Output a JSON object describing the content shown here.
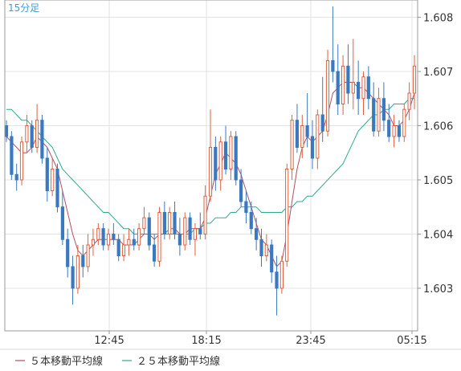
{
  "chart_data": {
    "type": "candlestick",
    "timeframe": "15分足",
    "x_tick_labels": [
      "12:45",
      "18:15",
      "23:45",
      "05:15"
    ],
    "y_tick_labels": [
      "1.603",
      "1.604",
      "1.605",
      "1.606",
      "1.607",
      "1.608"
    ],
    "y_ticks": [
      1.603,
      1.604,
      1.605,
      1.606,
      1.607,
      1.608
    ],
    "ylim": [
      1.6023,
      1.6083
    ],
    "grid": true,
    "legend": [
      {
        "name": "５本移動平均線",
        "color": "#b05060"
      },
      {
        "name": "２５本移動平均線",
        "color": "#2eaa8a"
      }
    ],
    "colors": {
      "up": "#e06040",
      "down": "#3a78c0",
      "ma5": "#b05060",
      "ma25": "#2eaa8a",
      "grid": "#e3e3e3",
      "axis": "#999999"
    },
    "candles": [
      [
        1.606,
        1.6061,
        1.6057,
        1.6058
      ],
      [
        1.6058,
        1.6059,
        1.605,
        1.6051
      ],
      [
        1.6051,
        1.6053,
        1.6048,
        1.605
      ],
      [
        1.605,
        1.6058,
        1.6049,
        1.6057
      ],
      [
        1.6057,
        1.6062,
        1.6055,
        1.606
      ],
      [
        1.606,
        1.6061,
        1.6055,
        1.6056
      ],
      [
        1.6056,
        1.6064,
        1.6055,
        1.6061
      ],
      [
        1.6061,
        1.6062,
        1.6053,
        1.6054
      ],
      [
        1.6054,
        1.6056,
        1.6046,
        1.6048
      ],
      [
        1.6048,
        1.6054,
        1.6047,
        1.6052
      ],
      [
        1.6052,
        1.6053,
        1.6044,
        1.6045
      ],
      [
        1.6045,
        1.6048,
        1.6038,
        1.6039
      ],
      [
        1.6039,
        1.6041,
        1.6032,
        1.6034
      ],
      [
        1.6034,
        1.6036,
        1.6027,
        1.603
      ],
      [
        1.603,
        1.6038,
        1.6029,
        1.6036
      ],
      [
        1.6036,
        1.6038,
        1.6032,
        1.6034
      ],
      [
        1.6034,
        1.604,
        1.6033,
        1.6038
      ],
      [
        1.6038,
        1.6041,
        1.6036,
        1.6039
      ],
      [
        1.6039,
        1.6042,
        1.6038,
        1.6041
      ],
      [
        1.6041,
        1.6042,
        1.6037,
        1.6038
      ],
      [
        1.6038,
        1.6041,
        1.6037,
        1.604
      ],
      [
        1.604,
        1.6042,
        1.6038,
        1.6039
      ],
      [
        1.6039,
        1.604,
        1.6035,
        1.6036
      ],
      [
        1.6036,
        1.604,
        1.6035,
        1.6038
      ],
      [
        1.6038,
        1.6041,
        1.6036,
        1.6039
      ],
      [
        1.6039,
        1.6041,
        1.6037,
        1.6038
      ],
      [
        1.6038,
        1.6042,
        1.6037,
        1.6041
      ],
      [
        1.6041,
        1.6045,
        1.604,
        1.6043
      ],
      [
        1.6043,
        1.6044,
        1.6037,
        1.6038
      ],
      [
        1.6038,
        1.604,
        1.6034,
        1.6035
      ],
      [
        1.6035,
        1.6045,
        1.6034,
        1.6044
      ],
      [
        1.6044,
        1.6046,
        1.6039,
        1.604
      ],
      [
        1.604,
        1.6045,
        1.6039,
        1.6044
      ],
      [
        1.6044,
        1.6046,
        1.6039,
        1.604
      ],
      [
        1.604,
        1.6043,
        1.6036,
        1.6038
      ],
      [
        1.6038,
        1.6044,
        1.6037,
        1.6043
      ],
      [
        1.6043,
        1.6044,
        1.6038,
        1.6039
      ],
      [
        1.6039,
        1.6042,
        1.6036,
        1.6041
      ],
      [
        1.6041,
        1.6044,
        1.6039,
        1.604
      ],
      [
        1.604,
        1.6049,
        1.6039,
        1.6047
      ],
      [
        1.6047,
        1.6063,
        1.6046,
        1.6056
      ],
      [
        1.6056,
        1.6058,
        1.6048,
        1.605
      ],
      [
        1.605,
        1.6058,
        1.6048,
        1.6057
      ],
      [
        1.6057,
        1.606,
        1.6051,
        1.6052
      ],
      [
        1.6052,
        1.6059,
        1.605,
        1.6058
      ],
      [
        1.6058,
        1.6059,
        1.6049,
        1.605
      ],
      [
        1.605,
        1.6052,
        1.6045,
        1.6046
      ],
      [
        1.6046,
        1.6048,
        1.6042,
        1.6044
      ],
      [
        1.6044,
        1.6046,
        1.604,
        1.6041
      ],
      [
        1.6041,
        1.6043,
        1.6037,
        1.6039
      ],
      [
        1.6039,
        1.6041,
        1.6034,
        1.6036
      ],
      [
        1.6036,
        1.604,
        1.6035,
        1.6038
      ],
      [
        1.6038,
        1.6039,
        1.6031,
        1.6033
      ],
      [
        1.6033,
        1.6036,
        1.6025,
        1.603
      ],
      [
        1.603,
        1.6036,
        1.6029,
        1.6035
      ],
      [
        1.6035,
        1.6053,
        1.6034,
        1.6052
      ],
      [
        1.6052,
        1.6062,
        1.605,
        1.6061
      ],
      [
        1.6061,
        1.6064,
        1.6055,
        1.6056
      ],
      [
        1.6056,
        1.6062,
        1.6054,
        1.606
      ],
      [
        1.606,
        1.6066,
        1.6056,
        1.6058
      ],
      [
        1.6058,
        1.6061,
        1.6052,
        1.6054
      ],
      [
        1.6054,
        1.6063,
        1.6052,
        1.6062
      ],
      [
        1.6062,
        1.6069,
        1.6057,
        1.6059
      ],
      [
        1.6059,
        1.6074,
        1.6058,
        1.6072
      ],
      [
        1.6072,
        1.6082,
        1.6068,
        1.607
      ],
      [
        1.607,
        1.6075,
        1.6062,
        1.6064
      ],
      [
        1.6064,
        1.6073,
        1.6062,
        1.6071
      ],
      [
        1.6071,
        1.6075,
        1.6064,
        1.6066
      ],
      [
        1.6066,
        1.6076,
        1.6063,
        1.6068
      ],
      [
        1.6068,
        1.6072,
        1.6062,
        1.6065
      ],
      [
        1.6065,
        1.607,
        1.6062,
        1.6069
      ],
      [
        1.6069,
        1.6071,
        1.6063,
        1.6065
      ],
      [
        1.6065,
        1.6068,
        1.6058,
        1.6059
      ],
      [
        1.6059,
        1.6067,
        1.6058,
        1.6065
      ],
      [
        1.6065,
        1.6068,
        1.6059,
        1.6061
      ],
      [
        1.6061,
        1.6064,
        1.6057,
        1.6058
      ],
      [
        1.6058,
        1.6062,
        1.6056,
        1.606
      ],
      [
        1.606,
        1.6061,
        1.6057,
        1.6058
      ],
      [
        1.6058,
        1.6064,
        1.6057,
        1.6063
      ],
      [
        1.6063,
        1.6068,
        1.6061,
        1.6066
      ],
      [
        1.6066,
        1.6073,
        1.6063,
        1.6071
      ]
    ],
    "ma5": [
      1.6058,
      1.6057,
      1.6056,
      1.6055,
      1.6055,
      1.6056,
      1.6058,
      1.6057,
      1.6056,
      1.6054,
      1.6052,
      1.6048,
      1.6044,
      1.604,
      1.6037,
      1.6036,
      1.6037,
      1.6038,
      1.6039,
      1.6039,
      1.6039,
      1.6039,
      1.6039,
      1.6038,
      1.6038,
      1.6038,
      1.6039,
      1.604,
      1.604,
      1.6039,
      1.604,
      1.604,
      1.6041,
      1.6041,
      1.604,
      1.604,
      1.6041,
      1.6041,
      1.6041,
      1.6043,
      1.6047,
      1.6051,
      1.6053,
      1.6055,
      1.6054,
      1.6053,
      1.6051,
      1.6048,
      1.6045,
      1.6042,
      1.6039,
      1.6038,
      1.6036,
      1.6034,
      1.6035,
      1.604,
      1.6046,
      1.6052,
      1.6056,
      1.6058,
      1.6057,
      1.6058,
      1.6059,
      1.6062,
      1.6066,
      1.6067,
      1.6068,
      1.6068,
      1.6068,
      1.6067,
      1.6067,
      1.6066,
      1.6065,
      1.6064,
      1.6063,
      1.6062,
      1.606,
      1.606,
      1.6061,
      1.6063,
      1.6066
    ],
    "ma25": [
      1.6063,
      1.6063,
      1.6062,
      1.6061,
      1.6061,
      1.606,
      1.6059,
      1.6058,
      1.6057,
      1.6056,
      1.6054,
      1.6052,
      1.6051,
      1.605,
      1.6049,
      1.6048,
      1.6047,
      1.6046,
      1.6045,
      1.6044,
      1.6044,
      1.6043,
      1.6042,
      1.6041,
      1.6041,
      1.604,
      1.604,
      1.604,
      1.604,
      1.604,
      1.604,
      1.604,
      1.604,
      1.604,
      1.604,
      1.604,
      1.604,
      1.6041,
      1.6041,
      1.6042,
      1.6042,
      1.6043,
      1.6043,
      1.6043,
      1.6044,
      1.6044,
      1.6045,
      1.6045,
      1.6045,
      1.6045,
      1.6044,
      1.6044,
      1.6044,
      1.6044,
      1.6044,
      1.6045,
      1.6045,
      1.6046,
      1.6046,
      1.6047,
      1.6047,
      1.6048,
      1.6049,
      1.605,
      1.6051,
      1.6052,
      1.6053,
      1.6055,
      1.6057,
      1.6059,
      1.606,
      1.6061,
      1.6062,
      1.6062,
      1.6063,
      1.6063,
      1.6064,
      1.6064,
      1.6064,
      1.6065,
      1.6065
    ]
  }
}
